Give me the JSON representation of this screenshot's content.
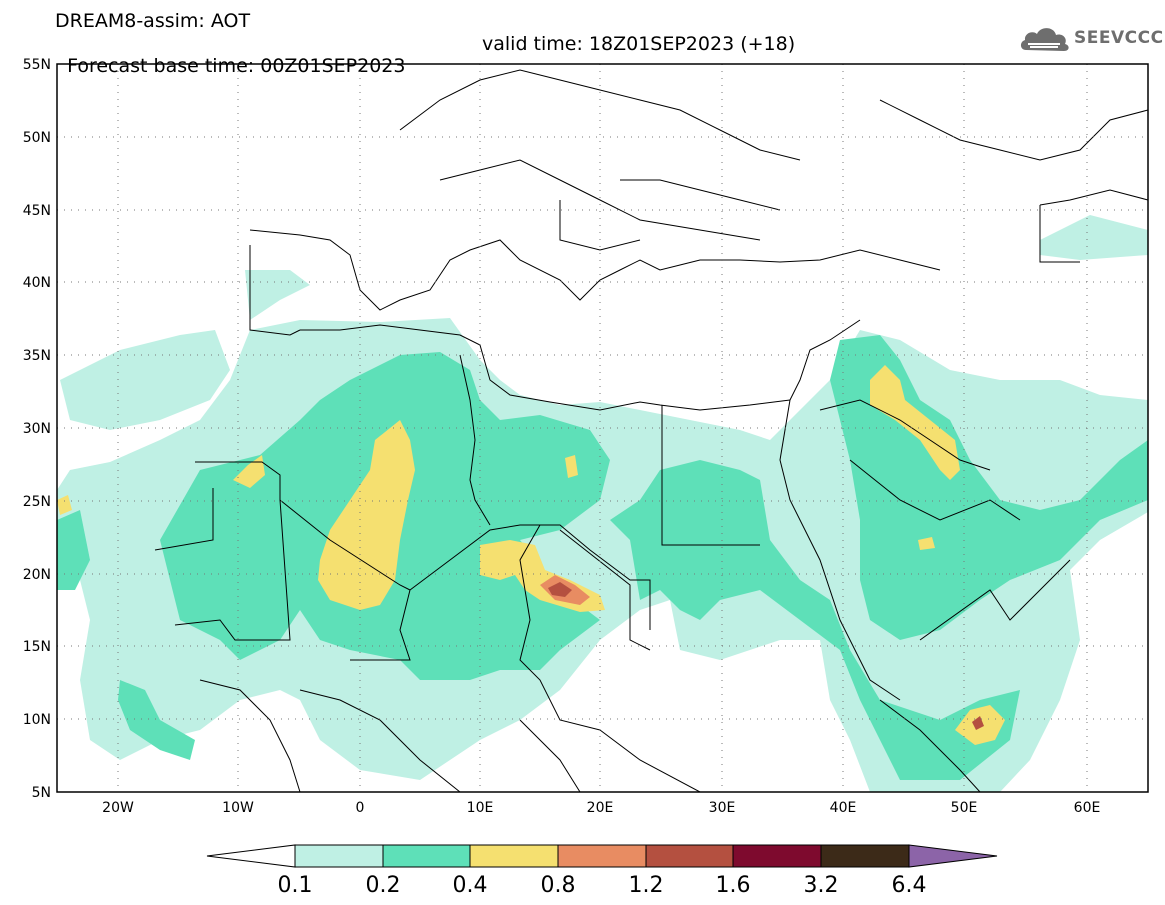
{
  "title": {
    "line1": "DREAM8-assim: AOT",
    "line2": "Forecast base time: 00Z01SEP2023",
    "valid": "valid time: 18Z01SEP2023 (+18)"
  },
  "logo": {
    "text": "SEEVCCC",
    "icon": "cloud-icon"
  },
  "map": {
    "lon_range": [
      -25,
      65
    ],
    "lat_range": [
      5,
      55
    ],
    "grid": true,
    "lat_ticks": [
      "55N",
      "50N",
      "45N",
      "40N",
      "35N",
      "30N",
      "25N",
      "20N",
      "15N",
      "10N",
      "5N"
    ],
    "lon_ticks": [
      "20W",
      "10W",
      "0",
      "10E",
      "20E",
      "30E",
      "40E",
      "50E",
      "60E"
    ]
  },
  "colorbar": {
    "levels": [
      "0.1",
      "0.2",
      "0.4",
      "0.8",
      "1.2",
      "1.6",
      "3.2",
      "6.4"
    ],
    "colors": [
      "#ffffff",
      "#bff0e4",
      "#5ee0b8",
      "#f5e070",
      "#e88c62",
      "#b45040",
      "#7e0a2e",
      "#3c2a18",
      "#8c64a8"
    ]
  }
}
